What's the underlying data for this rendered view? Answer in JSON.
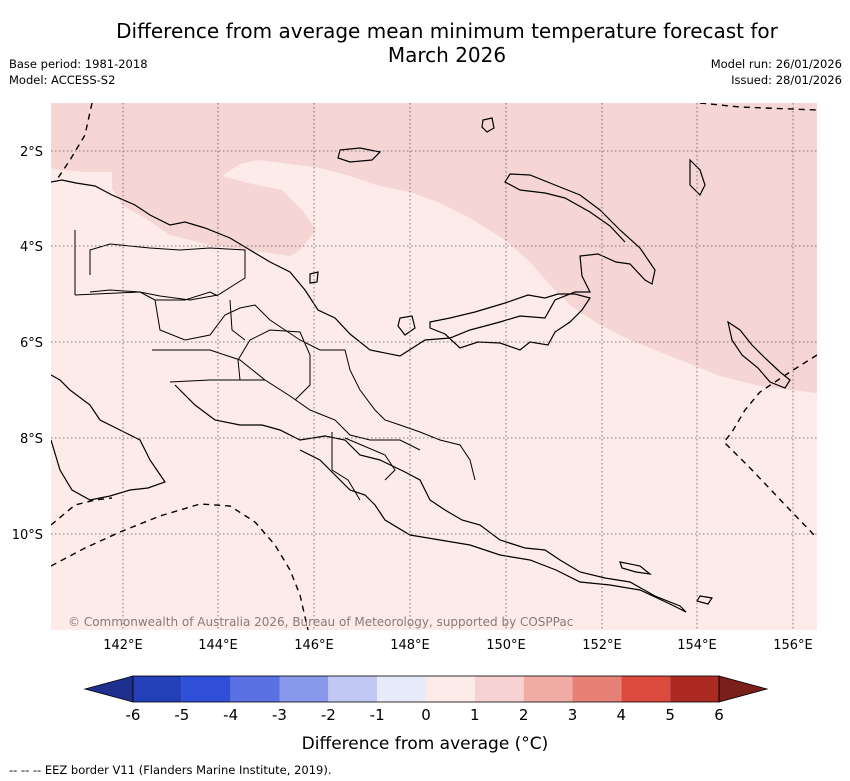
{
  "title_line1": "Difference from average mean minimum temperature forecast for",
  "title_line2": "March 2026",
  "base_period": "Base period: 1981-2018",
  "model": "Model: ACCESS-S2",
  "model_run": "Model run: 26/01/2026",
  "issued": "Issued: 28/01/2026",
  "copyright": "© Commonwealth of Australia 2026, Bureau of Meteorology, supported by COSPPac",
  "lat_labels": [
    "2°S",
    "4°S",
    "6°S",
    "8°S",
    "10°S"
  ],
  "lon_labels": [
    "142°E",
    "144°E",
    "146°E",
    "148°E",
    "150°E",
    "152°E",
    "154°E",
    "156°E"
  ],
  "colorbar": {
    "title": "Difference from average (°C)",
    "tick_labels": [
      "-6",
      "-5",
      "-4",
      "-3",
      "-2",
      "-1",
      "0",
      "1",
      "2",
      "3",
      "4",
      "5",
      "6"
    ],
    "colors": [
      "#1f2f8e",
      "#2440b8",
      "#2f4fd9",
      "#5a71e3",
      "#8899ec",
      "#c0c8f3",
      "#e8ebf9",
      "#fcebe9",
      "#f6d3d2",
      "#f1aca6",
      "#e78077",
      "#dc4a3e",
      "#ad2a23",
      "#7a1f1a"
    ]
  },
  "map": {
    "background_anomaly_color": "#fcebe9",
    "band_anomaly_color": "#f6d5d5"
  },
  "eez_note": "--  --  -- EEZ border V11 (Flanders Marine Institute, 2019)."
}
